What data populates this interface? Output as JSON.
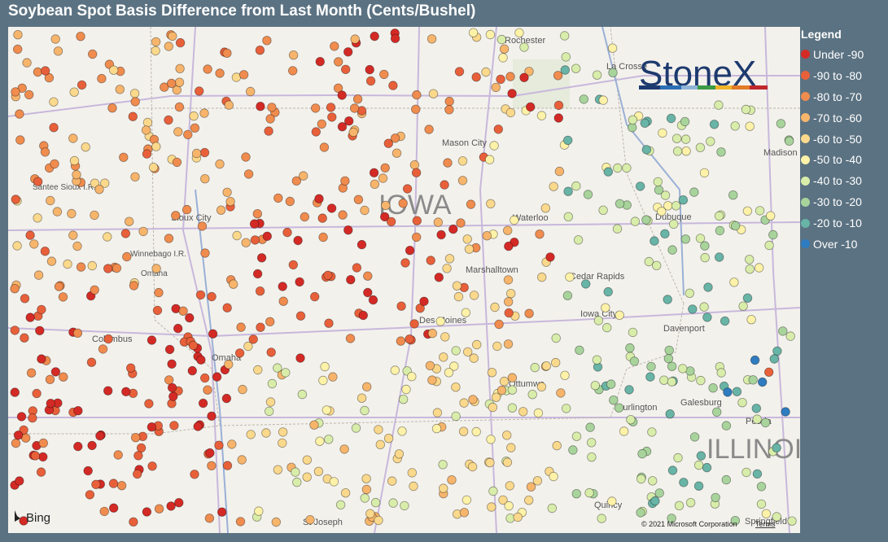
{
  "title": "Soybean Spot Basis Difference from Last Month (Cents/Bushel)",
  "legend": {
    "title": "Legend",
    "items": [
      {
        "label": "Under -90",
        "color": "#d42a25"
      },
      {
        "label": "-90 to -80",
        "color": "#e8603a"
      },
      {
        "label": "-80 to -70",
        "color": "#f08c4e"
      },
      {
        "label": "-70 to -60",
        "color": "#f7b56c"
      },
      {
        "label": "-60 to -50",
        "color": "#fbd98c"
      },
      {
        "label": "-50 to -40",
        "color": "#fdf2a8"
      },
      {
        "label": "-40 to -30",
        "color": "#d9edaa"
      },
      {
        "label": "-30 to -20",
        "color": "#a8d49c"
      },
      {
        "label": "-20 to -10",
        "color": "#68b4a6"
      },
      {
        "label": "Over -10",
        "color": "#2f7cc0"
      }
    ]
  },
  "map": {
    "labels": [
      "Rochester",
      "La Crosse",
      "Mason City",
      "Madison",
      "Santee Sioux I.R.",
      "IOWA",
      "Sioux City",
      "Waterloo",
      "Dubuque",
      "Winnebago I.R.",
      "Omaha",
      "Marshalltown",
      "Cedar Rapids",
      "Iowa City",
      "Columbus",
      "Des Moines",
      "Davenport",
      "Omaha",
      "Ottumwa",
      "Burlington",
      "Galesburg",
      "Peoria",
      "ILLINOIS",
      "Quincy",
      "St Joseph",
      "Springfield"
    ],
    "watermark": "StoneX",
    "provider": "Bing",
    "attribution": "© 2021 Microsoft Corporation",
    "terms": "Terms"
  }
}
